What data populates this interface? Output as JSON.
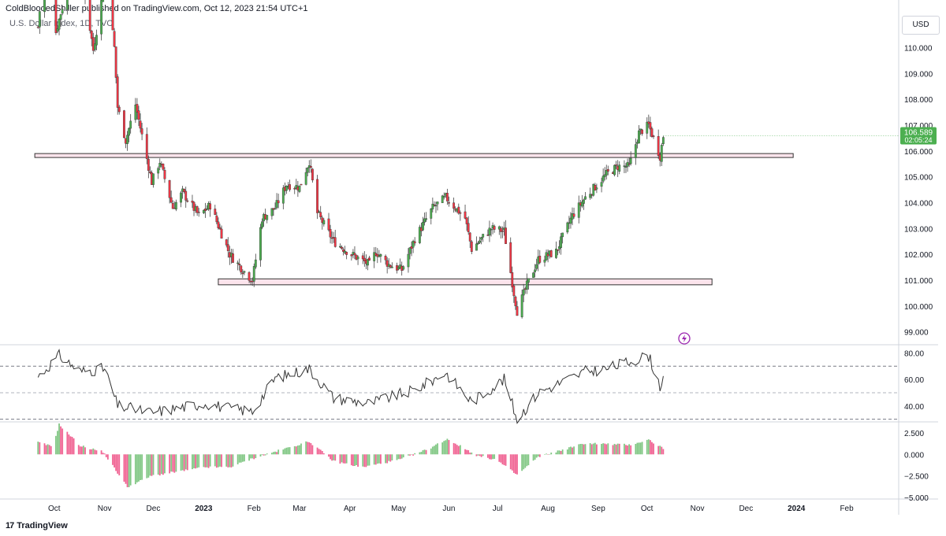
{
  "header": {
    "publisher_line": "ColdBloodedShiller published on TradingView.com, Oct 12, 2023 21:54 UTC+1",
    "symbol_line": "U.S. Dollar Index, 1D, TVC",
    "currency_button": "USD"
  },
  "footer": {
    "brand": "TradingView",
    "brand_mark": "17"
  },
  "price_tag": {
    "price": "106.589",
    "countdown": "02:05:24",
    "color": "#4caf50"
  },
  "colors": {
    "up": "#4caf50",
    "down": "#f23645",
    "zone_fill": "#fce4ec",
    "zone_stroke": "#333333",
    "rsi_line": "#333333",
    "hist_up": "#81c784",
    "hist_down": "#f06292",
    "grid": "#d1d4dc",
    "alert_icon": "#9c27b0"
  },
  "icons": {
    "alert": "lightning-bolt-icon",
    "logo": "tradingview-logo-icon"
  },
  "chart_data": [
    {
      "type": "candlestick",
      "title": "U.S. Dollar Index, 1D, TVC",
      "x_months": [
        "Oct",
        "Nov",
        "Dec",
        "2023",
        "Feb",
        "Mar",
        "Apr",
        "May",
        "Jun",
        "Jul",
        "Aug",
        "Sep",
        "Oct",
        "Nov",
        "Dec",
        "2024",
        "Feb"
      ],
      "y_ticks": [
        "110.000",
        "109.000",
        "108.000",
        "107.000",
        "106.000",
        "105.000",
        "104.000",
        "103.000",
        "102.000",
        "101.000",
        "100.000",
        "99.000"
      ],
      "ylim": [
        98.5,
        111.6
      ],
      "last_price": 106.589,
      "close_path": [
        {
          "d": "2022-09-22",
          "v": 110.8
        },
        {
          "d": "2022-09-27",
          "v": 113.9
        },
        {
          "d": "2022-10-03",
          "v": 110.6
        },
        {
          "d": "2022-10-12",
          "v": 112.8
        },
        {
          "d": "2022-10-21",
          "v": 112.0
        },
        {
          "d": "2022-10-26",
          "v": 109.9
        },
        {
          "d": "2022-11-03",
          "v": 112.9
        },
        {
          "d": "2022-11-08",
          "v": 110.0
        },
        {
          "d": "2022-11-10",
          "v": 107.7
        },
        {
          "d": "2022-11-15",
          "v": 106.4
        },
        {
          "d": "2022-11-21",
          "v": 107.8
        },
        {
          "d": "2022-12-01",
          "v": 104.8
        },
        {
          "d": "2022-12-06",
          "v": 105.6
        },
        {
          "d": "2022-12-14",
          "v": 103.8
        },
        {
          "d": "2022-12-20",
          "v": 104.4
        },
        {
          "d": "2022-12-30",
          "v": 103.5
        },
        {
          "d": "2023-01-06",
          "v": 103.9
        },
        {
          "d": "2023-01-18",
          "v": 102.0
        },
        {
          "d": "2023-01-26",
          "v": 101.4
        },
        {
          "d": "2023-02-01",
          "v": 101.0
        },
        {
          "d": "2023-02-07",
          "v": 103.4
        },
        {
          "d": "2023-02-15",
          "v": 103.8
        },
        {
          "d": "2023-02-22",
          "v": 104.7
        },
        {
          "d": "2023-03-02",
          "v": 104.6
        },
        {
          "d": "2023-03-08",
          "v": 105.6
        },
        {
          "d": "2023-03-13",
          "v": 103.6
        },
        {
          "d": "2023-03-23",
          "v": 102.5
        },
        {
          "d": "2023-04-03",
          "v": 102.0
        },
        {
          "d": "2023-04-14",
          "v": 101.6
        },
        {
          "d": "2023-04-18",
          "v": 102.1
        },
        {
          "d": "2023-04-26",
          "v": 101.6
        },
        {
          "d": "2023-05-04",
          "v": 101.4
        },
        {
          "d": "2023-05-12",
          "v": 102.6
        },
        {
          "d": "2023-05-23",
          "v": 103.8
        },
        {
          "d": "2023-05-31",
          "v": 104.2
        },
        {
          "d": "2023-06-12",
          "v": 103.4
        },
        {
          "d": "2023-06-16",
          "v": 102.2
        },
        {
          "d": "2023-06-28",
          "v": 103.0
        },
        {
          "d": "2023-07-06",
          "v": 102.9
        },
        {
          "d": "2023-07-12",
          "v": 100.5
        },
        {
          "d": "2023-07-14",
          "v": 99.8
        },
        {
          "d": "2023-07-20",
          "v": 100.8
        },
        {
          "d": "2023-07-27",
          "v": 101.8
        },
        {
          "d": "2023-08-07",
          "v": 102.1
        },
        {
          "d": "2023-08-17",
          "v": 103.5
        },
        {
          "d": "2023-08-25",
          "v": 104.2
        },
        {
          "d": "2023-09-07",
          "v": 105.1
        },
        {
          "d": "2023-09-14",
          "v": 105.4
        },
        {
          "d": "2023-09-21",
          "v": 105.4
        },
        {
          "d": "2023-09-27",
          "v": 106.7
        },
        {
          "d": "2023-10-03",
          "v": 107.0
        },
        {
          "d": "2023-10-10",
          "v": 105.8
        },
        {
          "d": "2023-10-12",
          "v": 106.589
        }
      ],
      "support_zones": [
        {
          "from": "2022-09-20",
          "to": "2023-12-31",
          "top": 105.9,
          "bottom": 105.75
        },
        {
          "from": "2023-01-11",
          "to": "2023-11-11",
          "top": 101.05,
          "bottom": 100.82
        }
      ]
    },
    {
      "type": "line",
      "name": "RSI",
      "y_ticks": [
        "80.00",
        "60.00",
        "40.00"
      ],
      "ylim": [
        28,
        85
      ],
      "levels": [
        70,
        50,
        30
      ],
      "points": [
        {
          "d": "2022-09-22",
          "v": 62
        },
        {
          "d": "2022-10-05",
          "v": 78
        },
        {
          "d": "2022-10-18",
          "v": 66
        },
        {
          "d": "2022-11-02",
          "v": 68
        },
        {
          "d": "2022-11-10",
          "v": 40
        },
        {
          "d": "2022-12-01",
          "v": 35
        },
        {
          "d": "2023-01-03",
          "v": 42
        },
        {
          "d": "2023-01-18",
          "v": 38
        },
        {
          "d": "2023-02-01",
          "v": 36
        },
        {
          "d": "2023-02-15",
          "v": 61
        },
        {
          "d": "2023-03-08",
          "v": 68
        },
        {
          "d": "2023-03-23",
          "v": 46
        },
        {
          "d": "2023-04-14",
          "v": 42
        },
        {
          "d": "2023-05-12",
          "v": 52
        },
        {
          "d": "2023-05-31",
          "v": 65
        },
        {
          "d": "2023-06-16",
          "v": 43
        },
        {
          "d": "2023-07-06",
          "v": 60
        },
        {
          "d": "2023-07-14",
          "v": 30
        },
        {
          "d": "2023-07-27",
          "v": 50
        },
        {
          "d": "2023-08-25",
          "v": 66
        },
        {
          "d": "2023-09-07",
          "v": 68
        },
        {
          "d": "2023-10-03",
          "v": 78
        },
        {
          "d": "2023-10-10",
          "v": 55
        },
        {
          "d": "2023-10-12",
          "v": 62
        }
      ]
    },
    {
      "type": "bar",
      "name": "MACD histogram",
      "y_ticks": [
        "2.500",
        "0.000",
        "−2.500",
        "−5.000"
      ],
      "ylim": [
        -5.2,
        3.6
      ],
      "envelope": [
        {
          "d": "2022-09-22",
          "v": 1.4
        },
        {
          "d": "2022-10-01",
          "v": 0.9
        },
        {
          "d": "2022-10-05",
          "v": 3.5
        },
        {
          "d": "2022-10-18",
          "v": 1.0
        },
        {
          "d": "2022-11-01",
          "v": 0.3
        },
        {
          "d": "2022-11-16",
          "v": -3.8
        },
        {
          "d": "2022-12-01",
          "v": -2.5
        },
        {
          "d": "2023-01-03",
          "v": -1.5
        },
        {
          "d": "2023-01-18",
          "v": -1.5
        },
        {
          "d": "2023-02-01",
          "v": -0.5
        },
        {
          "d": "2023-02-20",
          "v": 0.6
        },
        {
          "d": "2023-03-08",
          "v": 1.5
        },
        {
          "d": "2023-03-23",
          "v": -0.8
        },
        {
          "d": "2023-04-10",
          "v": -1.5
        },
        {
          "d": "2023-05-03",
          "v": -0.6
        },
        {
          "d": "2023-05-20",
          "v": 0.6
        },
        {
          "d": "2023-06-01",
          "v": 1.8
        },
        {
          "d": "2023-06-20",
          "v": -0.2
        },
        {
          "d": "2023-07-01",
          "v": -0.6
        },
        {
          "d": "2023-07-14",
          "v": -2.4
        },
        {
          "d": "2023-07-27",
          "v": -0.3
        },
        {
          "d": "2023-08-25",
          "v": 1.3
        },
        {
          "d": "2023-09-21",
          "v": 1.1
        },
        {
          "d": "2023-10-03",
          "v": 1.7
        },
        {
          "d": "2023-10-12",
          "v": 0.7
        }
      ]
    }
  ]
}
